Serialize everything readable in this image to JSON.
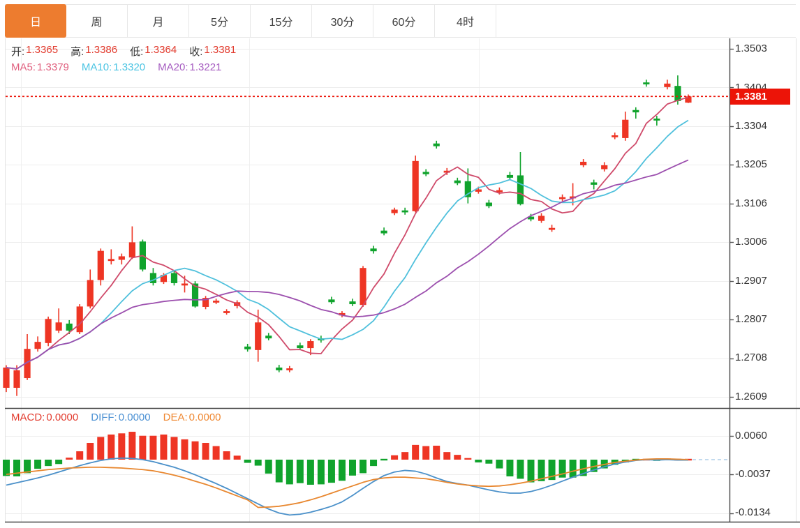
{
  "tabs": {
    "selected_index": 0,
    "items": [
      "日",
      "周",
      "月",
      "5分",
      "15分",
      "30分",
      "60分",
      "4时"
    ]
  },
  "legend": {
    "ohlc": [
      {
        "label": "开:",
        "value": "1.3365"
      },
      {
        "label": "高:",
        "value": "1.3386"
      },
      {
        "label": "低:",
        "value": "1.3364"
      },
      {
        "label": "收:",
        "value": "1.3381"
      }
    ],
    "ma": [
      {
        "label": "MA5:",
        "value": "1.3379"
      },
      {
        "label": "MA10:",
        "value": "1.3320"
      },
      {
        "label": "MA20:",
        "value": "1.3221"
      }
    ]
  },
  "macd_legend": [
    {
      "label": "MACD:",
      "value": "0.0000"
    },
    {
      "label": "DIFF:",
      "value": "0.0000"
    },
    {
      "label": "DEA:",
      "value": "0.0000"
    }
  ],
  "price_axis": {
    "ticks": [
      "1.3503",
      "1.3404",
      "1.3304",
      "1.3205",
      "1.3106",
      "1.3006",
      "1.2907",
      "1.2807",
      "1.2708",
      "1.2609"
    ]
  },
  "macd_axis": {
    "ticks": [
      "0.0060",
      "-0.0037",
      "-0.0134"
    ]
  },
  "current_price": {
    "value": "1.3381"
  },
  "colors": {
    "up": "#ee3524",
    "down": "#10a32c",
    "ma5": "#cf4a6a",
    "ma10": "#4fc0dc",
    "ma20": "#9c4fae",
    "diff_line": "#4a90c9",
    "dea_line": "#e8872f",
    "accent_tab": "#ed7c2f",
    "price_tag": "#ec1408",
    "zero_dash": "#aecde8"
  },
  "chart_data": {
    "type": "candlestick+macd",
    "main": {
      "y_ticks": [
        1.3503,
        1.3404,
        1.3304,
        1.3205,
        1.3106,
        1.3006,
        1.2907,
        1.2807,
        1.2708,
        1.2609
      ],
      "current_price": 1.3381,
      "ma_periods": [
        5,
        10,
        20
      ],
      "candles_ohlc": [
        [
          1.2632,
          1.269,
          1.2621,
          1.2684
        ],
        [
          1.2632,
          1.269,
          1.2611,
          1.2677
        ],
        [
          1.2657,
          1.277,
          1.2652,
          1.2732
        ],
        [
          1.2732,
          1.2764,
          1.2725,
          1.275
        ],
        [
          1.2747,
          1.2815,
          1.2739,
          1.2809
        ],
        [
          1.2779,
          1.2836,
          1.2773,
          1.28
        ],
        [
          1.2797,
          1.2806,
          1.277,
          1.2779
        ],
        [
          1.2775,
          1.2847,
          1.277,
          1.2841
        ],
        [
          1.2841,
          1.2936,
          1.2836,
          1.2909
        ],
        [
          1.2909,
          1.299,
          1.2895,
          1.2984
        ],
        [
          1.2958,
          1.2988,
          1.2949,
          1.2963
        ],
        [
          1.2961,
          1.2977,
          1.2949,
          1.297
        ],
        [
          1.2967,
          1.3047,
          1.2963,
          1.3006
        ],
        [
          1.3008,
          1.3013,
          1.2931,
          1.2936
        ],
        [
          1.2927,
          1.294,
          1.2895,
          1.2901
        ],
        [
          1.2904,
          1.2927,
          1.2899,
          1.2922
        ],
        [
          1.2927,
          1.2934,
          1.2895,
          1.2901
        ],
        [
          1.2895,
          1.292,
          1.2877,
          1.29
        ],
        [
          1.29,
          1.2906,
          1.2838,
          1.2841
        ],
        [
          1.284,
          1.2868,
          1.2834,
          1.2863
        ],
        [
          1.2851,
          1.2861,
          1.2847,
          1.2856
        ],
        [
          1.2824,
          1.2834,
          1.282,
          1.2829
        ],
        [
          1.2842,
          1.2857,
          1.2836,
          1.2852
        ],
        [
          1.2738,
          1.2745,
          1.2725,
          1.2731
        ],
        [
          1.2729,
          1.2833,
          1.2699,
          1.28
        ],
        [
          1.2766,
          1.2773,
          1.2754,
          1.2759
        ],
        [
          1.2684,
          1.2691,
          1.2672,
          1.2677
        ],
        [
          1.2677,
          1.2688,
          1.2672,
          1.2682
        ],
        [
          1.2741,
          1.2748,
          1.2729,
          1.2734
        ],
        [
          1.2734,
          1.2757,
          1.2716,
          1.2752
        ],
        [
          1.2759,
          1.2766,
          1.2748,
          1.2754
        ],
        [
          1.2859,
          1.2866,
          1.2847,
          1.2852
        ],
        [
          1.2818,
          1.2829,
          1.2813,
          1.2824
        ],
        [
          1.2854,
          1.2861,
          1.2842,
          1.2847
        ],
        [
          1.2845,
          1.2945,
          1.284,
          1.294
        ],
        [
          1.299,
          1.2997,
          1.2977,
          1.2983
        ],
        [
          1.3036,
          1.3044,
          1.3024,
          1.3029
        ],
        [
          1.3081,
          1.3095,
          1.3076,
          1.309
        ],
        [
          1.3088,
          1.3095,
          1.3077,
          1.3083
        ],
        [
          1.3086,
          1.3229,
          1.3083,
          1.3215
        ],
        [
          1.3187,
          1.3194,
          1.3176,
          1.3181
        ],
        [
          1.326,
          1.3267,
          1.3247,
          1.3253
        ],
        [
          1.3185,
          1.3197,
          1.3179,
          1.319
        ],
        [
          1.3165,
          1.3172,
          1.3153,
          1.3158
        ],
        [
          1.3163,
          1.3196,
          1.3106,
          1.3122
        ],
        [
          1.3136,
          1.3149,
          1.3131,
          1.3142
        ],
        [
          1.3108,
          1.3115,
          1.3094,
          1.3099
        ],
        [
          1.3135,
          1.3147,
          1.3129,
          1.314
        ],
        [
          1.3179,
          1.3187,
          1.3167,
          1.3172
        ],
        [
          1.3178,
          1.3238,
          1.3101,
          1.3104
        ],
        [
          1.3072,
          1.3079,
          1.306,
          1.3065
        ],
        [
          1.3061,
          1.3081,
          1.3056,
          1.3074
        ],
        [
          1.3038,
          1.3051,
          1.3033,
          1.3043
        ],
        [
          1.3117,
          1.3129,
          1.3112,
          1.3122
        ],
        [
          1.3119,
          1.3158,
          1.3101,
          1.3124
        ],
        [
          1.3204,
          1.322,
          1.3199,
          1.3213
        ],
        [
          1.316,
          1.3167,
          1.3142,
          1.3154
        ],
        [
          1.3194,
          1.3212,
          1.3188,
          1.3204
        ],
        [
          1.3276,
          1.3288,
          1.3271,
          1.3281
        ],
        [
          1.3274,
          1.3342,
          1.3267,
          1.3321
        ],
        [
          1.3346,
          1.3353,
          1.3324,
          1.334
        ],
        [
          1.3417,
          1.3424,
          1.3406,
          1.3412
        ],
        [
          1.3324,
          1.3331,
          1.3306,
          1.3319
        ],
        [
          1.3405,
          1.3424,
          1.3399,
          1.3414
        ],
        [
          1.3408,
          1.3435,
          1.336,
          1.3369
        ],
        [
          1.3365,
          1.3386,
          1.3364,
          1.3381
        ]
      ]
    },
    "macd": {
      "y_ticks": [
        0.006,
        -0.0037,
        -0.0134
      ],
      "histogram": [
        -0.0041,
        -0.0042,
        -0.0034,
        -0.0023,
        -0.0016,
        -0.0011,
        0.0005,
        0.0021,
        0.0042,
        0.0057,
        0.0063,
        0.0066,
        0.007,
        0.006,
        0.006,
        0.0063,
        0.0057,
        0.0051,
        0.0046,
        0.0042,
        0.0034,
        0.0021,
        0.001,
        -0.0008,
        -0.0015,
        -0.0035,
        -0.0057,
        -0.0062,
        -0.0059,
        -0.0063,
        -0.0062,
        -0.0058,
        -0.0053,
        -0.004,
        -0.0034,
        -0.0016,
        -0.0002,
        0.0011,
        0.0019,
        0.0037,
        0.0034,
        0.0035,
        0.0019,
        0.0012,
        0.0004,
        -0.0007,
        -0.001,
        -0.0022,
        -0.0042,
        -0.0048,
        -0.0057,
        -0.0054,
        -0.0051,
        -0.0045,
        -0.0045,
        -0.0041,
        -0.0031,
        -0.0022,
        -0.0013,
        -0.0007,
        -0.0002,
        0.0002,
        -0.0003,
        0.0003,
        0.0001,
        0.0001
      ],
      "diff": [
        -0.0064,
        -0.0058,
        -0.0052,
        -0.0046,
        -0.0039,
        -0.0031,
        -0.0023,
        -0.0015,
        -0.0008,
        -0.0002,
        0.0002,
        0.0004,
        0.0003,
        0.0,
        -0.0005,
        -0.0012,
        -0.0019,
        -0.0028,
        -0.0038,
        -0.0049,
        -0.006,
        -0.0072,
        -0.0085,
        -0.0098,
        -0.0111,
        -0.0124,
        -0.0134,
        -0.0139,
        -0.0137,
        -0.0132,
        -0.0125,
        -0.0117,
        -0.0106,
        -0.009,
        -0.0072,
        -0.0055,
        -0.004,
        -0.0031,
        -0.0027,
        -0.0029,
        -0.0036,
        -0.0046,
        -0.0055,
        -0.006,
        -0.0064,
        -0.007,
        -0.0076,
        -0.0081,
        -0.0084,
        -0.0084,
        -0.008,
        -0.0073,
        -0.0064,
        -0.0054,
        -0.0044,
        -0.0035,
        -0.0026,
        -0.0018,
        -0.0011,
        -0.0006,
        -0.0002,
        0.0,
        -0.0001,
        0.0,
        -0.0001,
        -0.0001
      ],
      "dea": [
        -0.0037,
        -0.0034,
        -0.0031,
        -0.0028,
        -0.0025,
        -0.0023,
        -0.0021,
        -0.002,
        -0.0019,
        -0.0019,
        -0.002,
        -0.0021,
        -0.0023,
        -0.0025,
        -0.0028,
        -0.0033,
        -0.0039,
        -0.0046,
        -0.0054,
        -0.0062,
        -0.0071,
        -0.0081,
        -0.0091,
        -0.0101,
        -0.012,
        -0.0119,
        -0.0117,
        -0.0113,
        -0.0108,
        -0.0101,
        -0.0093,
        -0.0084,
        -0.0075,
        -0.0066,
        -0.0057,
        -0.005,
        -0.0046,
        -0.0044,
        -0.0044,
        -0.0046,
        -0.0048,
        -0.0052,
        -0.0057,
        -0.0061,
        -0.0064,
        -0.0066,
        -0.0067,
        -0.0066,
        -0.0063,
        -0.0059,
        -0.0054,
        -0.0048,
        -0.0042,
        -0.0036,
        -0.0029,
        -0.0023,
        -0.0017,
        -0.0012,
        -0.0007,
        -0.0004,
        -0.0001,
        0.0001,
        0.0002,
        0.0002,
        0.0001,
        0.0
      ]
    }
  }
}
